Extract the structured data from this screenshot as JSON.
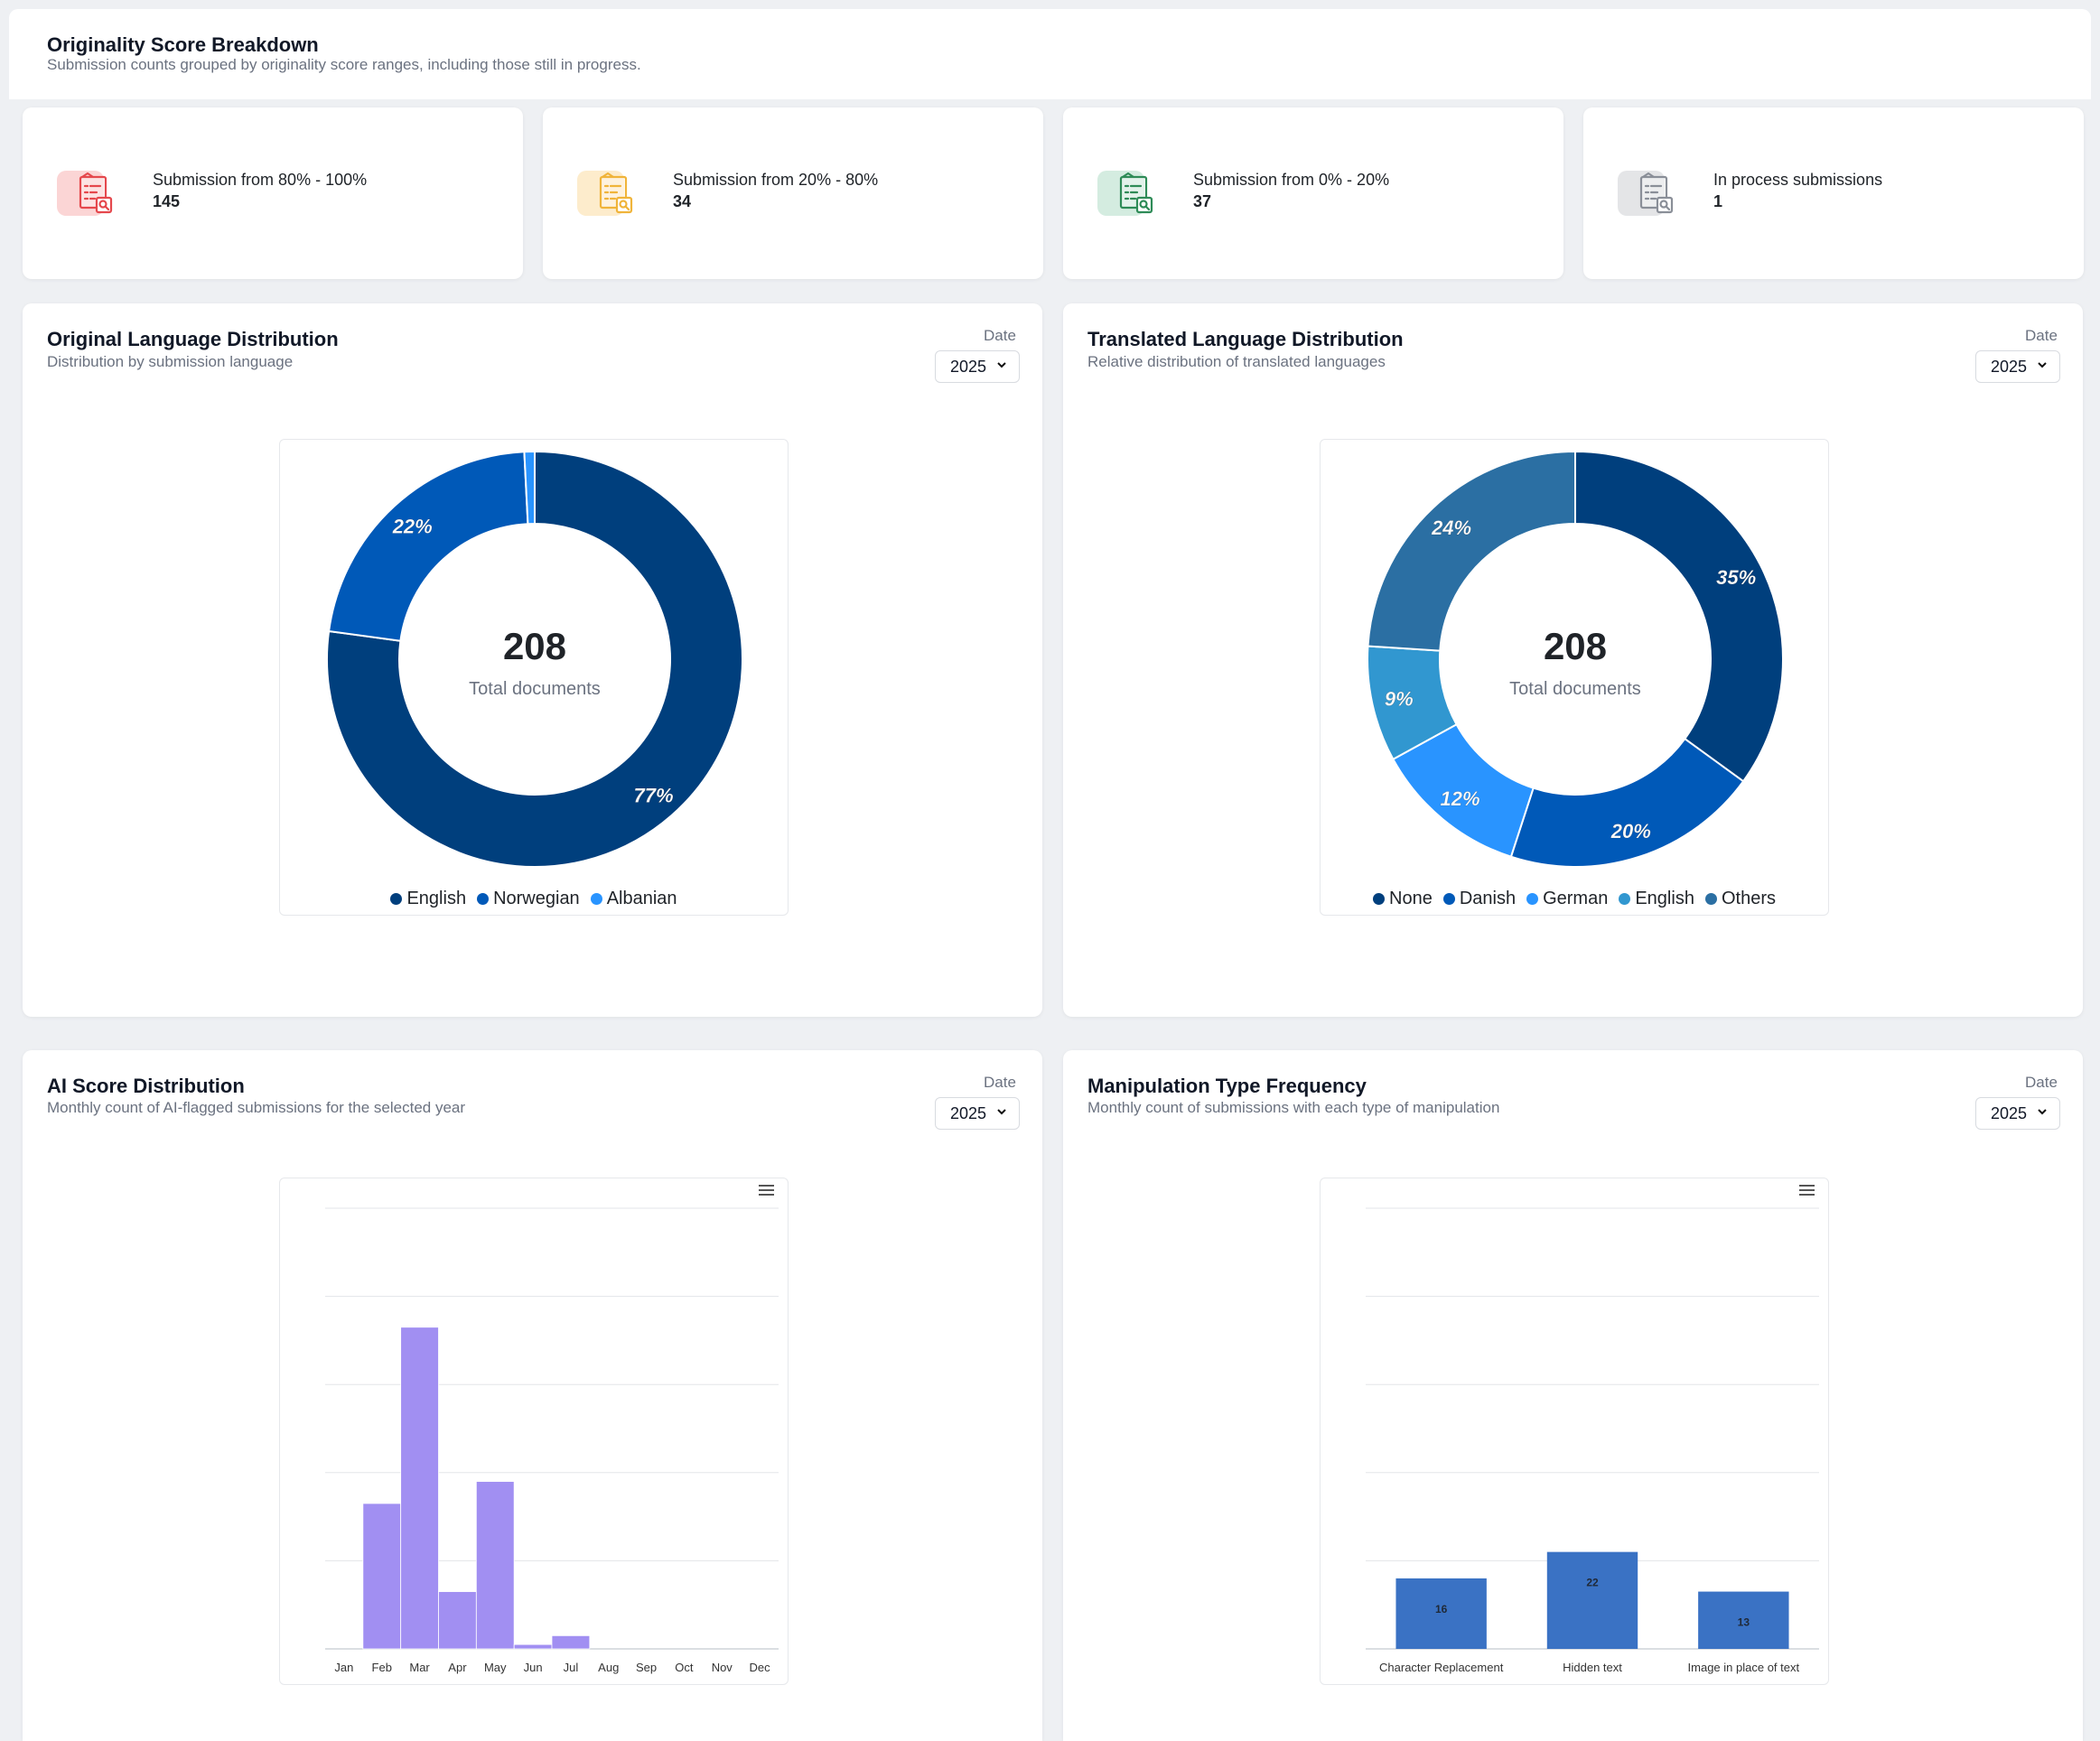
{
  "breakdown": {
    "title": "Originality Score Breakdown",
    "subtitle": "Submission counts grouped by originality score ranges, including those still in progress.",
    "stats": [
      {
        "label": "Submission from 80% - 100%",
        "value": "145",
        "icon": "document-search-icon",
        "color": "#e5484d",
        "bg": "#fbd5d5"
      },
      {
        "label": "Submission from 20% - 80%",
        "value": "34",
        "icon": "document-search-icon",
        "color": "#f0b43a",
        "bg": "#fdeccc"
      },
      {
        "label": "Submission from 0% - 20%",
        "value": "37",
        "icon": "document-search-icon",
        "color": "#2e8b57",
        "bg": "#d4ece0"
      },
      {
        "label": "In process submissions",
        "value": "1",
        "icon": "document-search-icon",
        "color": "#8a8f98",
        "bg": "#e4e5e7"
      }
    ]
  },
  "date_label": "Date",
  "year": "2025",
  "original_lang": {
    "title": "Original Language Distribution",
    "subtitle": "Distribution by submission language",
    "center_value": "208",
    "center_label": "Total documents"
  },
  "translated_lang": {
    "title": "Translated Language Distribution",
    "subtitle": "Relative distribution of translated languages",
    "center_value": "208",
    "center_label": "Total documents"
  },
  "ai_score": {
    "title": "AI Score Distribution",
    "subtitle": "Monthly count of AI-flagged submissions for the selected year"
  },
  "manipulation": {
    "title": "Manipulation Type Frequency",
    "subtitle": "Monthly count of submissions with each type of manipulation"
  },
  "chart_data": [
    {
      "type": "pie",
      "donut": true,
      "labels": [
        "English",
        "Norwegian",
        "Albanian"
      ],
      "values": [
        77,
        22,
        0.8
      ],
      "data_labels": [
        "77%",
        "22%",
        ""
      ],
      "colors": [
        "#003f7d",
        "#0059b8",
        "#2994ff"
      ],
      "legend": "bottom"
    },
    {
      "type": "pie",
      "donut": true,
      "labels": [
        "None",
        "Danish",
        "German",
        "English",
        "Others"
      ],
      "values": [
        35,
        20,
        12,
        9,
        24
      ],
      "data_labels": [
        "35%",
        "20%",
        "12%",
        "9%",
        "24%"
      ],
      "colors": [
        "#003f7d",
        "#0059b8",
        "#2994ff",
        "#3197d0",
        "#2b6fa3"
      ],
      "legend": "bottom"
    },
    {
      "type": "bar",
      "categories": [
        "Jan",
        "Feb",
        "Mar",
        "Apr",
        "May",
        "Jun",
        "Jul",
        "Aug",
        "Sep",
        "Oct",
        "Nov",
        "Dec"
      ],
      "values": [
        0,
        33,
        73,
        13,
        38,
        1,
        3,
        0,
        0,
        0,
        0,
        0
      ],
      "ylim": [
        0,
        100
      ],
      "grid": true,
      "color": "#a18ff2"
    },
    {
      "type": "bar",
      "categories": [
        "Character Replacement",
        "Hidden text",
        "Image in place of text"
      ],
      "values": [
        16,
        22,
        13
      ],
      "data_labels": [
        "16",
        "22",
        "13"
      ],
      "ylim": [
        0,
        100
      ],
      "grid": true,
      "color": "#3a72c4"
    }
  ]
}
